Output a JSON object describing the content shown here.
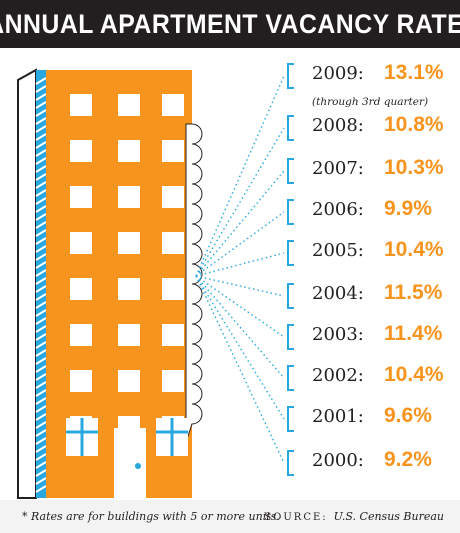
{
  "title": "ANNUAL APARTMENT VACANCY RATE*",
  "chart_data": {
    "type": "table",
    "title": "ANNUAL APARTMENT VACANCY RATE*",
    "rows": [
      {
        "year": "2009:",
        "value": "13.1%",
        "note": "(through 3rd quarter)"
      },
      {
        "year": "2008:",
        "value": "10.8%"
      },
      {
        "year": "2007:",
        "value": "10.3%"
      },
      {
        "year": "2006:",
        "value": "9.9%"
      },
      {
        "year": "2005:",
        "value": "10.4%"
      },
      {
        "year": "2004:",
        "value": "11.5%"
      },
      {
        "year": "2003:",
        "value": "11.4%"
      },
      {
        "year": "2002:",
        "value": "10.4%"
      },
      {
        "year": "2001:",
        "value": "9.6%"
      },
      {
        "year": "2000:",
        "value": "9.2%"
      }
    ]
  },
  "footnote": "* Rates are for buildings with 5 or more units.",
  "source_label": "SOURCE:",
  "source": "U.S. Census Bureau",
  "colors": {
    "orange": "#f7941d",
    "blue": "#29a8e0",
    "dark": "#231f20",
    "white": "#ffffff"
  },
  "icons": [
    "apartment-building-icon"
  ]
}
